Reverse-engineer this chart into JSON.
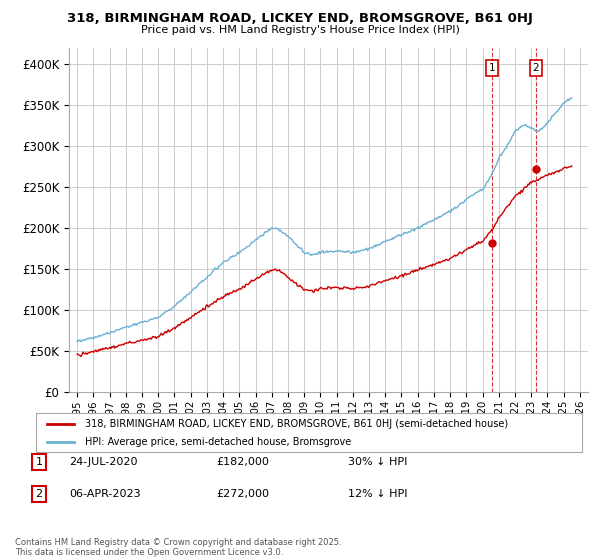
{
  "title": "318, BIRMINGHAM ROAD, LICKEY END, BROMSGROVE, B61 0HJ",
  "subtitle": "Price paid vs. HM Land Registry's House Price Index (HPI)",
  "hpi_color": "#6ab0d4",
  "price_color": "#cc0000",
  "background_color": "#ffffff",
  "grid_color": "#cccccc",
  "yticks": [
    0,
    50000,
    100000,
    150000,
    200000,
    250000,
    300000,
    350000,
    400000
  ],
  "xlim": [
    1994.5,
    2026.5
  ],
  "ylim": [
    0,
    420000
  ],
  "transaction1": {
    "date": "24-JUL-2020",
    "price": 182000,
    "label": "1",
    "hpi_diff": "30% ↓ HPI",
    "year": 2020.56
  },
  "transaction2": {
    "date": "06-APR-2023",
    "price": 272000,
    "label": "2",
    "hpi_diff": "12% ↓ HPI",
    "year": 2023.27
  },
  "legend_line1": "318, BIRMINGHAM ROAD, LICKEY END, BROMSGROVE, B61 0HJ (semi-detached house)",
  "legend_line2": "HPI: Average price, semi-detached house, Bromsgrove",
  "footnote": "Contains HM Land Registry data © Crown copyright and database right 2025.\nThis data is licensed under the Open Government Licence v3.0.",
  "xticks": [
    1995,
    1996,
    1997,
    1998,
    1999,
    2000,
    2001,
    2002,
    2003,
    2004,
    2005,
    2006,
    2007,
    2008,
    2009,
    2010,
    2011,
    2012,
    2013,
    2014,
    2015,
    2016,
    2017,
    2018,
    2019,
    2020,
    2021,
    2022,
    2023,
    2024,
    2025,
    2026
  ]
}
